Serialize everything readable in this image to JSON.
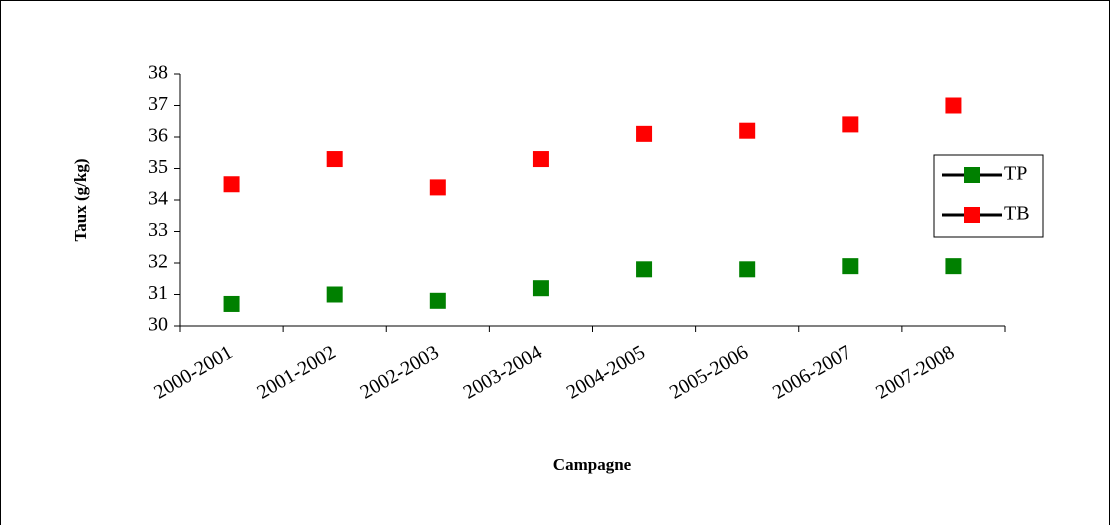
{
  "chart_data": {
    "type": "line",
    "x_label": "Campagne",
    "y_label": "Taux (g/kg)",
    "categories": [
      "2000-2001",
      "2001-2002",
      "2002-2003",
      "2003-2004",
      "2004-2005",
      "2005-2006",
      "2006-2007",
      "2007-2008"
    ],
    "series": [
      {
        "name": "TP",
        "color": "#008000",
        "values": [
          30.7,
          31.0,
          30.8,
          31.2,
          31.8,
          31.8,
          31.9,
          31.9
        ]
      },
      {
        "name": "TB",
        "color": "#ff0000",
        "values": [
          34.5,
          35.3,
          34.4,
          35.3,
          36.1,
          36.2,
          36.4,
          37.0
        ]
      }
    ],
    "line_color": "#000000",
    "ylim": [
      30,
      38
    ],
    "yticks": [
      30,
      31,
      32,
      33,
      34,
      35,
      36,
      37,
      38
    ],
    "grid": false,
    "legend": "right"
  }
}
